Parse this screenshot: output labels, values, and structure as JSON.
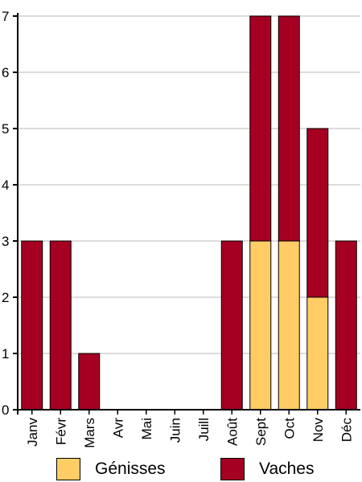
{
  "chart_data": {
    "type": "bar",
    "stacked": true,
    "categories": [
      "Janv",
      "Févr",
      "Mars",
      "Avr",
      "Mai",
      "Juin",
      "Juill",
      "Août",
      "Sept",
      "Oct",
      "Nov",
      "Déc"
    ],
    "series": [
      {
        "name": "Génisses",
        "color": "#FFCC66",
        "values": [
          0,
          0,
          0,
          0,
          0,
          0,
          0,
          0,
          3,
          3,
          2,
          0
        ]
      },
      {
        "name": "Vaches",
        "color": "#A50021",
        "values": [
          3,
          3,
          1,
          0,
          0,
          0,
          0,
          3,
          4,
          4,
          3,
          3
        ]
      }
    ],
    "ylim": [
      0,
      7
    ],
    "yticks": [
      0,
      1,
      2,
      3,
      4,
      5,
      6,
      7
    ],
    "grid": true,
    "legend_position": "bottom",
    "title": "",
    "xlabel": "",
    "ylabel": ""
  }
}
